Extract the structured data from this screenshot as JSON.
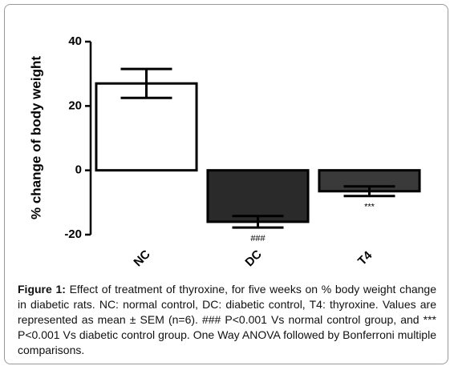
{
  "chart_data": {
    "type": "bar",
    "y_label": "% change of body weight",
    "categories": [
      "NC",
      "DC",
      "T4"
    ],
    "values": [
      27,
      -16,
      -6.5
    ],
    "errors": [
      4.5,
      1.8,
      1.5
    ],
    "colors": [
      "#ffffff",
      "#2a2a2a",
      "#3a3a3a"
    ],
    "ylim": [
      -20,
      40
    ],
    "yticks": [
      -20,
      0,
      20,
      40
    ],
    "grid": false,
    "annotations": [
      {
        "category": "DC",
        "text": "###"
      },
      {
        "category": "T4",
        "text": "***"
      }
    ]
  },
  "caption": {
    "label": "Figure 1:",
    "text": "Effect of treatment of thyroxine, for five weeks on % body weight change in diabetic rats. NC: normal control, DC: diabetic control, T4: thyroxine. Values are represented as mean ± SEM (n=6). ### P<0.001 Vs normal control group, and *** P<0.001 Vs diabetic control group. One Way ANOVA followed by Bonferroni multiple comparisons."
  }
}
